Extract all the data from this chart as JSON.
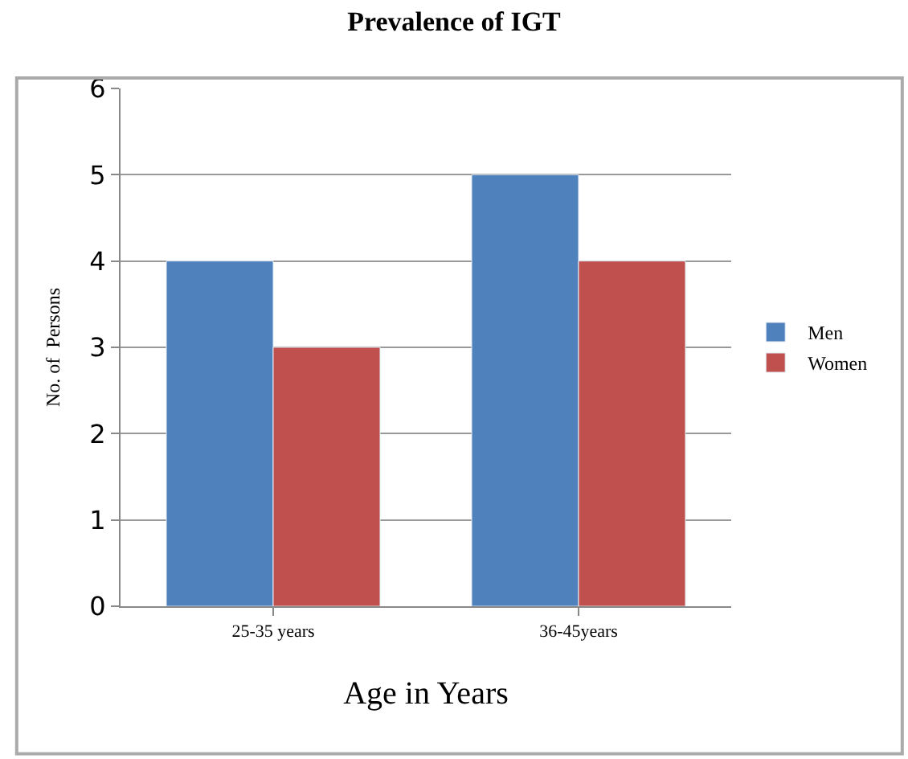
{
  "chart_data": {
    "type": "bar",
    "title": "Prevalence of IGT",
    "xlabel": "Age in Years",
    "ylabel": "No. of  Persons",
    "categories": [
      "25-35 years",
      "36-45years"
    ],
    "series": [
      {
        "name": "Men",
        "color": "#4f81bd",
        "values": [
          4,
          5
        ]
      },
      {
        "name": "Women",
        "color": "#c0504d",
        "values": [
          3,
          4
        ]
      }
    ],
    "ylim": [
      0,
      6
    ],
    "yticks": [
      0,
      1,
      2,
      3,
      4,
      5,
      6
    ],
    "grid": "y",
    "legend": "right"
  }
}
